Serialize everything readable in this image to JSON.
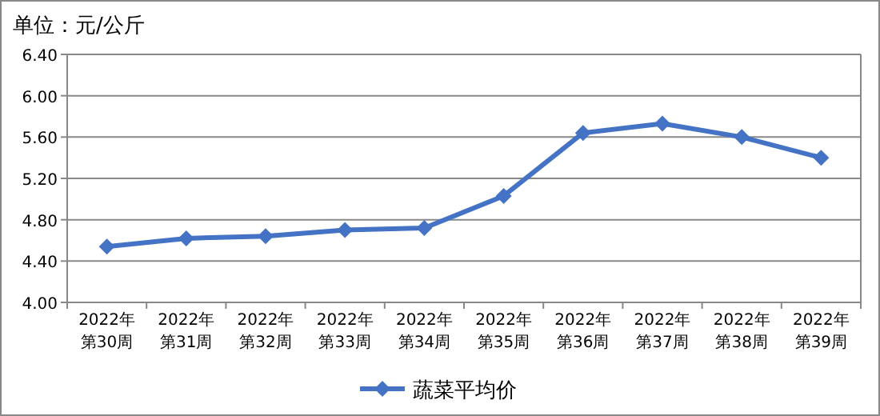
{
  "chart_data": {
    "type": "line",
    "title": "单位：元/公斤",
    "categories": [
      "2022年第30周",
      "2022年第31周",
      "2022年第32周",
      "2022年第33周",
      "2022年第34周",
      "2022年第35周",
      "2022年第36周",
      "2022年第37周",
      "2022年第38周",
      "2022年第39周"
    ],
    "series": [
      {
        "name": "蔬菜平均价",
        "color": "#4472c4",
        "values": [
          4.54,
          4.62,
          4.64,
          4.7,
          4.72,
          5.03,
          5.64,
          5.73,
          5.6,
          5.4
        ]
      }
    ],
    "ylim": [
      4.0,
      6.4
    ],
    "yticks": [
      {
        "value": 4.0,
        "label": "4.00"
      },
      {
        "value": 4.4,
        "label": "4.40"
      },
      {
        "value": 4.8,
        "label": "4.80"
      },
      {
        "value": 5.2,
        "label": "5.20"
      },
      {
        "value": 5.6,
        "label": "5.60"
      },
      {
        "value": 6.0,
        "label": "6.00"
      },
      {
        "value": 6.4,
        "label": "6.40"
      }
    ],
    "grid": "y",
    "legend": "bottom",
    "marker": "diamond",
    "line_style": "solid"
  }
}
